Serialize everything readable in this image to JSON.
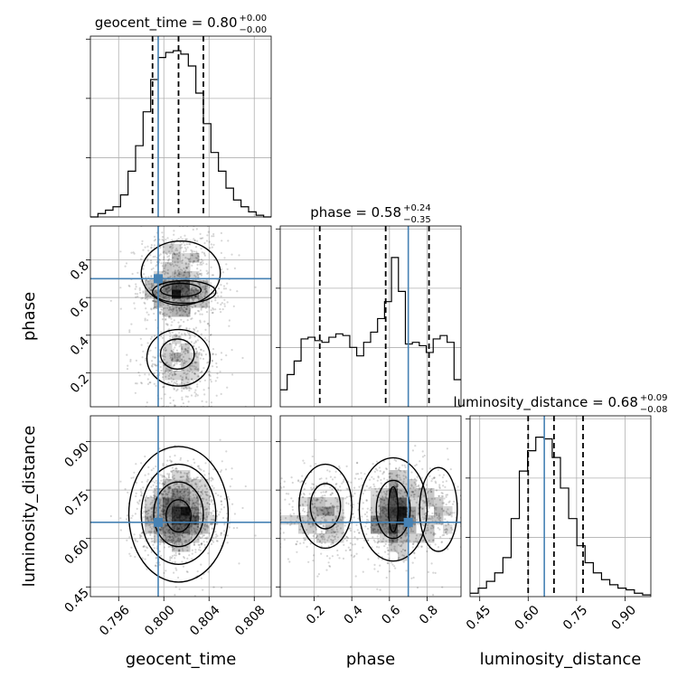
{
  "chart_data": {
    "type": "corner",
    "parameters": [
      "geocent_time",
      "phase",
      "luminosity_distance"
    ],
    "axis_labels": {
      "geocent_time": "geocent_time",
      "phase": "phase",
      "luminosity_distance": "luminosity_distance"
    },
    "titles": [
      {
        "name": "geocent_time",
        "text": "geocent_time = 0.80",
        "upper": "+0.00",
        "lower": "−0.00"
      },
      {
        "name": "phase",
        "text": "phase = 0.58",
        "upper": "+0.24",
        "lower": "−0.35"
      },
      {
        "name": "luminosity_distance",
        "text": "luminosity_distance = 0.68",
        "upper": "+0.09",
        "lower": "−0.08"
      }
    ],
    "ranges": {
      "geocent_time": [
        0.7935,
        0.8095
      ],
      "phase": [
        0.02,
        0.98
      ],
      "luminosity_distance": [
        0.42,
        0.98
      ]
    },
    "ticks": {
      "geocent_time": [
        "0.796",
        "0.800",
        "0.804",
        "0.808"
      ],
      "phase": [
        "0.2",
        "0.4",
        "0.6",
        "0.8"
      ],
      "luminosity_distance": [
        "0.45",
        "0.60",
        "0.75",
        "0.90"
      ]
    },
    "truths": {
      "geocent_time": 0.7995,
      "phase": 0.7,
      "luminosity_distance": 0.65
    },
    "quantiles": {
      "geocent_time": [
        0.799,
        0.8013,
        0.8035
      ],
      "phase": [
        0.23,
        0.58,
        0.81
      ],
      "luminosity_distance": [
        0.6,
        0.68,
        0.77
      ]
    },
    "histograms": {
      "geocent_time": [
        0,
        0.02,
        0.04,
        0.06,
        0.13,
        0.27,
        0.42,
        0.62,
        0.81,
        0.94,
        0.97,
        0.98,
        0.96,
        0.89,
        0.73,
        0.55,
        0.38,
        0.27,
        0.17,
        0.1,
        0.06,
        0.03,
        0.01,
        0
      ],
      "phase": [
        0.1,
        0.19,
        0.27,
        0.4,
        0.41,
        0.39,
        0.38,
        0.41,
        0.43,
        0.42,
        0.35,
        0.3,
        0.38,
        0.44,
        0.52,
        0.62,
        0.88,
        0.68,
        0.37,
        0.38,
        0.36,
        0.32,
        0.4,
        0.42,
        0.38,
        0.16
      ],
      "luminosity_distance": [
        0.02,
        0.05,
        0.09,
        0.14,
        0.23,
        0.46,
        0.74,
        0.86,
        0.94,
        0.93,
        0.82,
        0.64,
        0.46,
        0.3,
        0.2,
        0.14,
        0.1,
        0.07,
        0.05,
        0.04,
        0.02,
        0.01
      ]
    },
    "grid": true,
    "truth_color": "#4682b4",
    "line_color": "#000000"
  }
}
